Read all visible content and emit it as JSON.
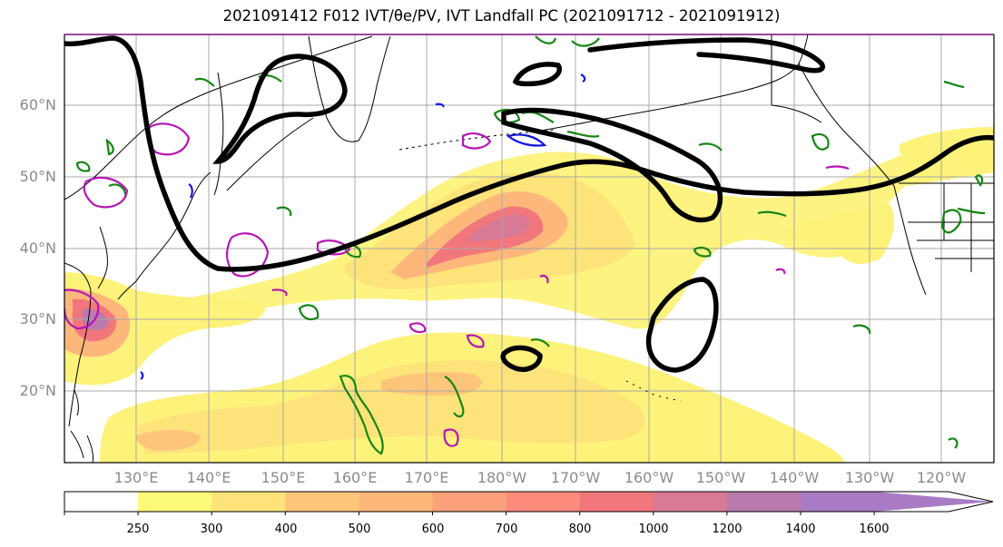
{
  "title": "2021091412 F012 IVT/θe/PV, IVT Landfall PC (2021091712 - 2021091912)",
  "map": {
    "lat_labels": [
      "60°N",
      "50°N",
      "40°N",
      "30°N",
      "20°N"
    ],
    "lon_labels": [
      "130°E",
      "140°E",
      "150°E",
      "160°E",
      "170°E",
      "180°W",
      "170°W",
      "160°W",
      "150°W",
      "140°W",
      "130°W",
      "120°W"
    ],
    "gridlines": true
  },
  "colorbar": {
    "levels": [
      "250",
      "300",
      "400",
      "500",
      "600",
      "700",
      "800",
      "1000",
      "1200",
      "1400",
      "1600"
    ],
    "colors": [
      "#ffffff",
      "#fdfa78",
      "#fde37a",
      "#fdc57a",
      "#fdb77b",
      "#fda07c",
      "#fd8a7b",
      "#f2777c",
      "#d87a96",
      "#b97aae",
      "#a87bc4"
    ],
    "extend": "max"
  },
  "colors": {
    "ivt_low": "#fdf27a",
    "ivt_mid": "#fdb77b",
    "ivt_high": "#e87a86",
    "ivt_max": "#a87bc4",
    "pc_contour": "#000000",
    "theta_e_contour": "#138613",
    "pv_contour": "#b515b5",
    "pv_neg_contour": "#1414e0",
    "coastline": "#000000"
  }
}
